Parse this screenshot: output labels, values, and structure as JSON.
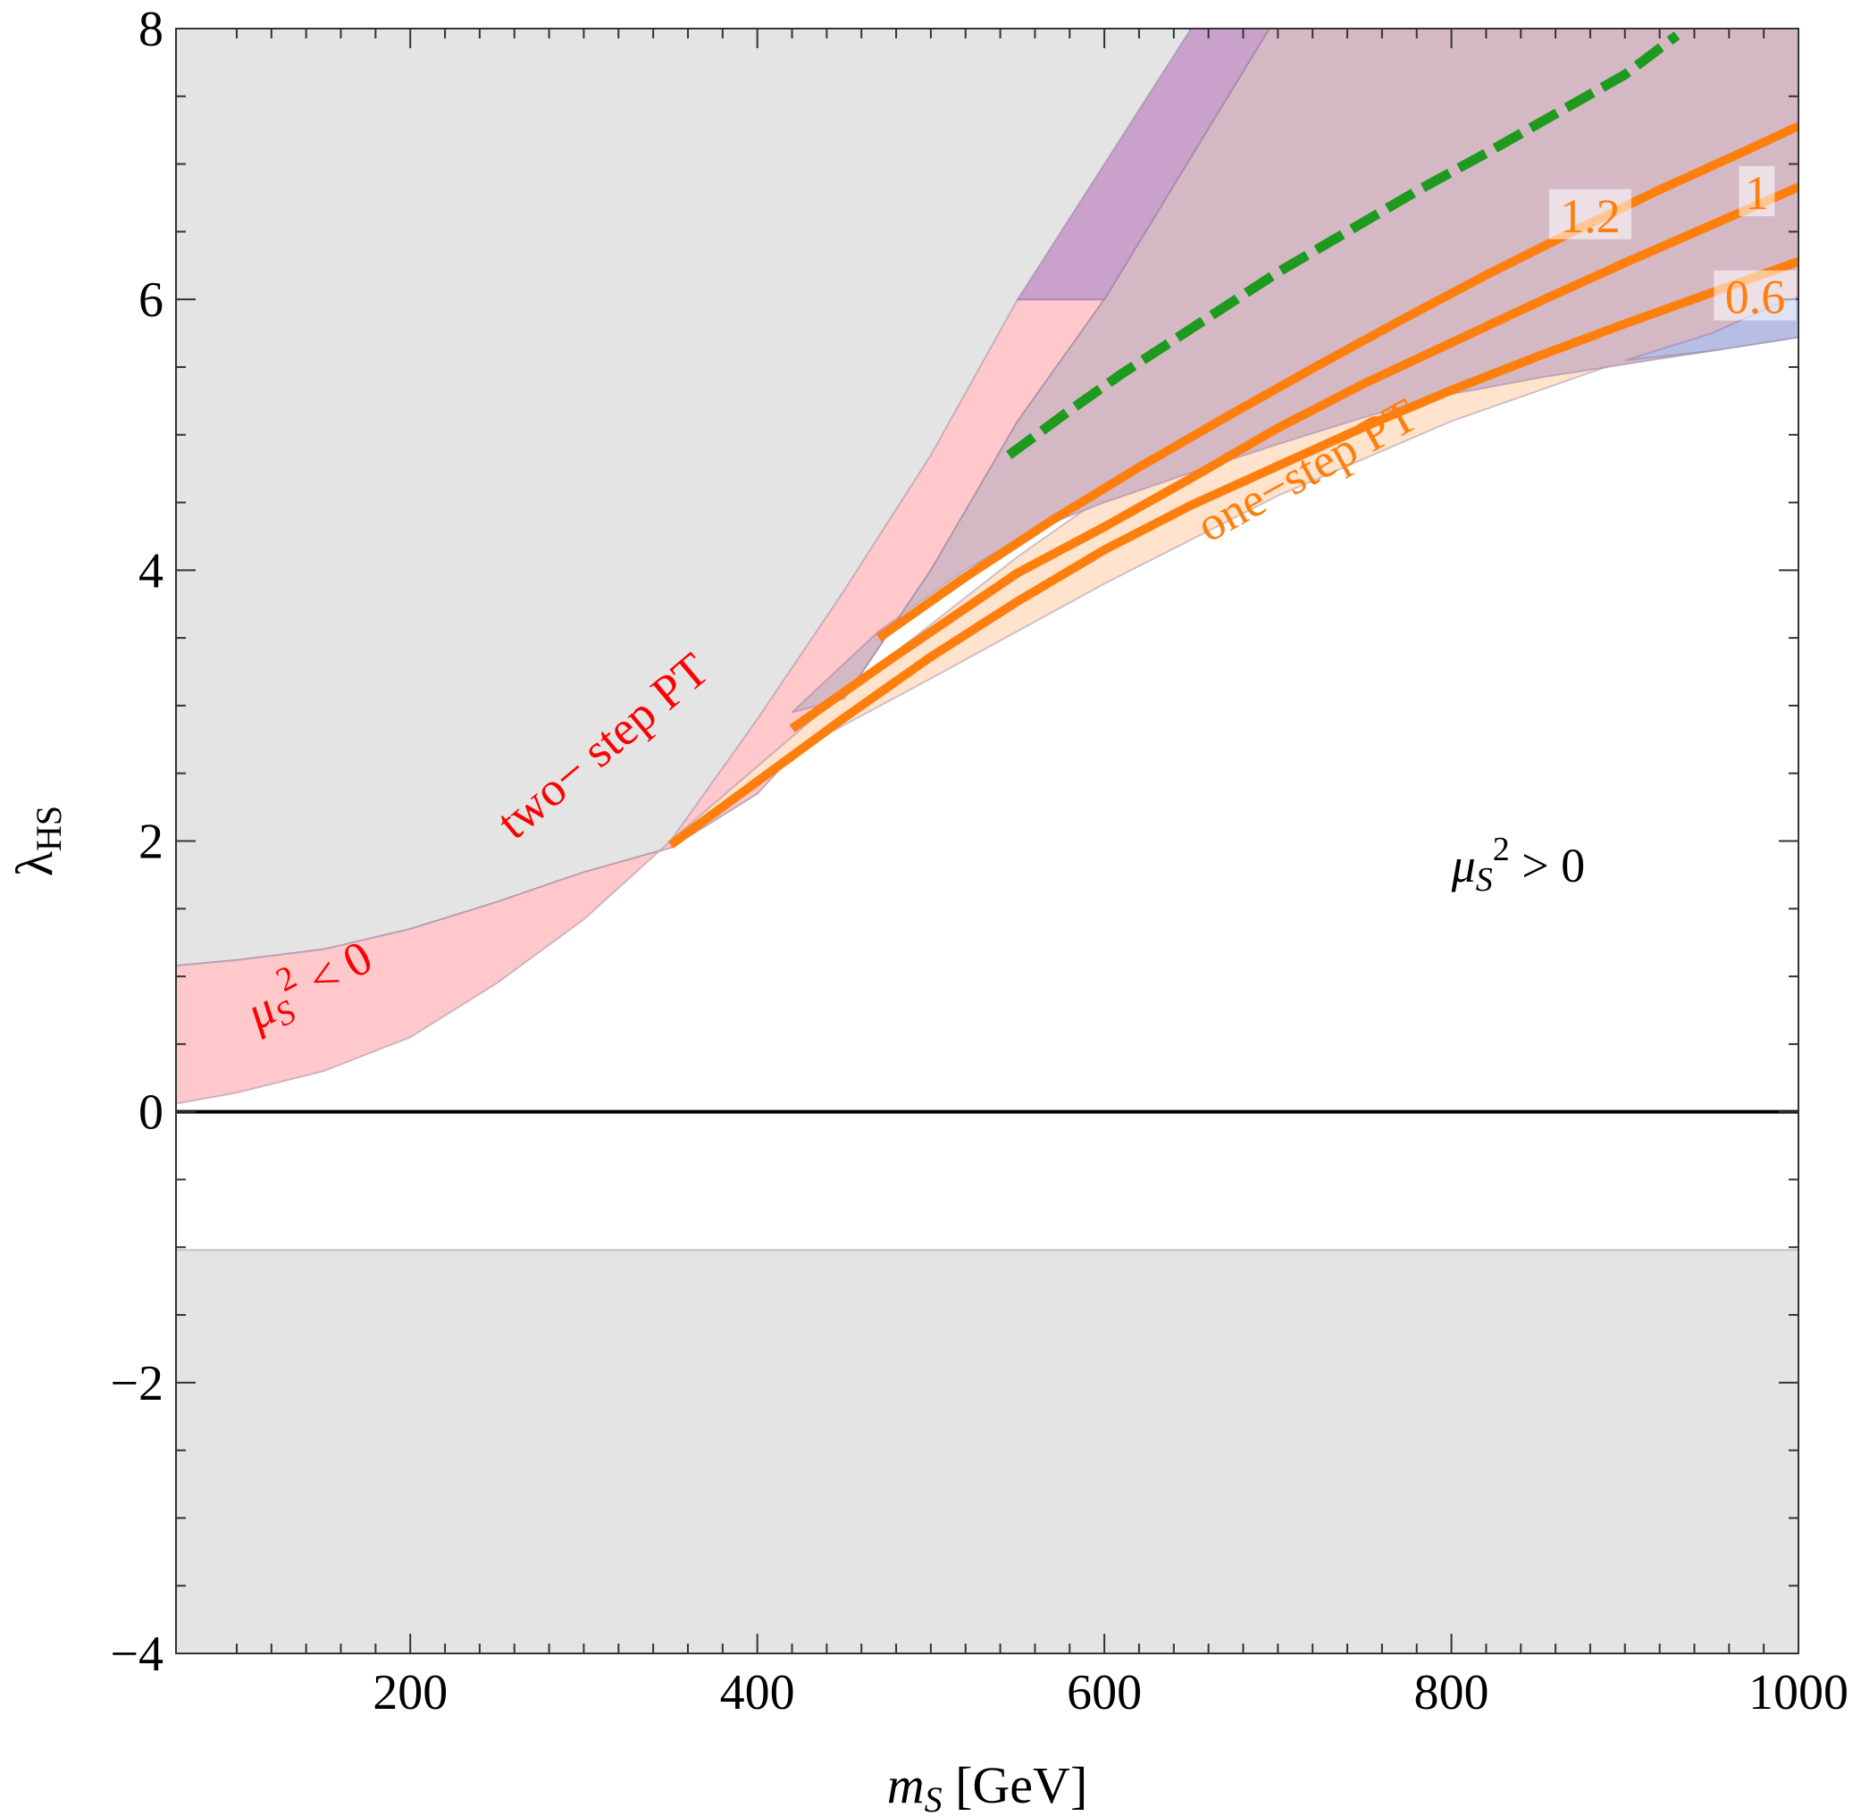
{
  "chart_data": {
    "type": "area",
    "xlabel": {
      "var": "m",
      "sub": "S",
      "unit": " [GeV]"
    },
    "ylabel": {
      "var": "λ",
      "sub": "HS"
    },
    "xlim": [
      65,
      1000
    ],
    "ylim": [
      -4,
      8
    ],
    "xticks": [
      200,
      400,
      600,
      800,
      1000
    ],
    "xtick_labels": [
      "200",
      "400",
      "600",
      "800",
      "1000"
    ],
    "yticks": [
      -4,
      -2,
      0,
      2,
      4,
      6,
      8
    ],
    "ytick_labels": [
      "−4",
      "−2",
      "0",
      "2",
      "4",
      "6",
      "8"
    ],
    "grid": false,
    "colors": {
      "excluded_gray": "#e4e4e4",
      "two_step_pink": "#ffc8cb",
      "one_step_peach": "#ffe3cc",
      "purple_region": "#c9a1cb",
      "mauve_overlap": "#d4b9c5",
      "blue_region": "#b8bde6",
      "orange_line": "#ff7f0e",
      "green_line": "#1e9a1e",
      "red_text": "#ff0000",
      "zero_line": "#000000"
    },
    "regions": [
      {
        "name": "excluded-upper",
        "color_key": "excluded_gray",
        "points": [
          [
            65,
            8
          ],
          [
            650,
            8
          ],
          [
            600,
            6
          ],
          [
            550,
            5.1
          ],
          [
            500,
            4.0
          ],
          [
            450,
            3.05
          ],
          [
            400,
            2.35
          ],
          [
            350,
            1.95
          ],
          [
            300,
            1.77
          ],
          [
            250,
            1.55
          ],
          [
            200,
            1.35
          ],
          [
            150,
            1.2
          ],
          [
            100,
            1.12
          ],
          [
            65,
            1.08
          ]
        ]
      },
      {
        "name": "excluded-lower",
        "color_key": "excluded_gray",
        "points": [
          [
            65,
            -1.02
          ],
          [
            1000,
            -1.02
          ],
          [
            1000,
            -4
          ],
          [
            65,
            -4
          ]
        ]
      },
      {
        "name": "two-step-band",
        "color_key": "two_step_pink",
        "points": [
          [
            65,
            1.08
          ],
          [
            100,
            1.12
          ],
          [
            150,
            1.2
          ],
          [
            200,
            1.35
          ],
          [
            250,
            1.55
          ],
          [
            300,
            1.77
          ],
          [
            350,
            1.95
          ],
          [
            400,
            2.35
          ],
          [
            450,
            3.05
          ],
          [
            500,
            4.0
          ],
          [
            550,
            5.1
          ],
          [
            600,
            6
          ],
          [
            550,
            6
          ],
          [
            500,
            4.85
          ],
          [
            450,
            3.85
          ],
          [
            400,
            2.9
          ],
          [
            350,
            2.0
          ],
          [
            300,
            1.42
          ],
          [
            250,
            0.95
          ],
          [
            200,
            0.55
          ],
          [
            150,
            0.3
          ],
          [
            100,
            0.14
          ],
          [
            65,
            0.06
          ]
        ]
      },
      {
        "name": "one-step-band",
        "color_key": "one_step_peach",
        "points": [
          [
            350,
            2.0
          ],
          [
            400,
            2.55
          ],
          [
            450,
            3.1
          ],
          [
            500,
            3.6
          ],
          [
            550,
            4.1
          ],
          [
            600,
            4.55
          ],
          [
            650,
            4.85
          ],
          [
            700,
            5.05
          ],
          [
            750,
            5.2
          ],
          [
            800,
            5.35
          ],
          [
            850,
            5.45
          ],
          [
            900,
            5.55
          ],
          [
            900,
            5.55
          ],
          [
            800,
            5.1
          ],
          [
            700,
            4.55
          ],
          [
            600,
            3.9
          ],
          [
            500,
            3.2
          ],
          [
            420,
            2.65
          ],
          [
            350,
            2.0
          ]
        ]
      },
      {
        "name": "mauve-region",
        "color_key": "mauve_overlap",
        "points": [
          [
            420,
            2.95
          ],
          [
            470,
            3.55
          ],
          [
            520,
            4.0
          ],
          [
            560,
            4.3
          ],
          [
            600,
            4.5
          ],
          [
            650,
            4.72
          ],
          [
            700,
            4.93
          ],
          [
            750,
            5.13
          ],
          [
            800,
            5.3
          ],
          [
            850,
            5.42
          ],
          [
            900,
            5.52
          ],
          [
            950,
            5.62
          ],
          [
            1000,
            5.72
          ],
          [
            1000,
            8
          ],
          [
            695,
            8
          ],
          [
            600,
            6
          ],
          [
            550,
            5.1
          ],
          [
            500,
            4.0
          ],
          [
            450,
            3.05
          ]
        ]
      },
      {
        "name": "purple-region",
        "color_key": "purple_region",
        "points": [
          [
            550,
            6
          ],
          [
            600,
            6
          ],
          [
            695,
            8
          ],
          [
            650,
            8
          ]
        ]
      },
      {
        "name": "blue-region",
        "color_key": "blue_region",
        "points": [
          [
            900,
            5.55
          ],
          [
            950,
            5.75
          ],
          [
            985,
            5.95
          ],
          [
            1000,
            6.02
          ],
          [
            1000,
            5.72
          ],
          [
            950,
            5.62
          ]
        ]
      }
    ],
    "series": [
      {
        "name": "1.2",
        "color_key": "orange_line",
        "style": "solid",
        "x": [
          470,
          520,
          570,
          620,
          670,
          720,
          770,
          820,
          870,
          920,
          970,
          1000
        ],
        "y": [
          3.5,
          3.95,
          4.37,
          4.76,
          5.13,
          5.49,
          5.84,
          6.18,
          6.5,
          6.81,
          7.1,
          7.28
        ]
      },
      {
        "name": "1",
        "color_key": "orange_line",
        "style": "solid",
        "x": [
          420,
          480,
          550,
          600,
          650,
          700,
          750,
          800,
          850,
          900,
          950,
          1000
        ],
        "y": [
          2.83,
          3.37,
          3.98,
          4.32,
          4.68,
          5.05,
          5.38,
          5.68,
          5.98,
          6.27,
          6.55,
          6.83
        ]
      },
      {
        "name": "0.6",
        "color_key": "orange_line",
        "style": "solid",
        "x": [
          350,
          400,
          450,
          500,
          550,
          600,
          650,
          700,
          750,
          800,
          850,
          900,
          950,
          1000
        ],
        "y": [
          1.97,
          2.44,
          2.91,
          3.36,
          3.77,
          4.15,
          4.48,
          4.77,
          5.06,
          5.33,
          5.58,
          5.82,
          6.05,
          6.28
        ]
      },
      {
        "name": "green-dashed",
        "color_key": "green_line",
        "style": "dashed",
        "x": [
          545,
          580,
          610,
          640,
          670,
          700,
          740,
          780,
          820,
          860,
          900,
          930
        ],
        "y": [
          4.85,
          5.18,
          5.45,
          5.7,
          5.95,
          6.2,
          6.5,
          6.8,
          7.08,
          7.37,
          7.66,
          7.95
        ]
      }
    ],
    "annotations": [
      {
        "name": "one-step-label",
        "text": "one−step PT",
        "color_key": "orange_line",
        "x": 660,
        "y": 4.2,
        "rotate": -29
      },
      {
        "name": "two-step-label",
        "text": "two− step  PT",
        "color_key": "red_text",
        "x": 260,
        "y": 2.0,
        "rotate": -40
      },
      {
        "name": "neg-mu-label",
        "base": "μ",
        "sub": "S",
        "sup": "2",
        "rest": "< 0",
        "color_key": "red_text",
        "x": 112,
        "y": 0.6,
        "rotate": -28
      },
      {
        "name": "pos-mu-label",
        "base": "μ",
        "sub": "S",
        "sup": "2",
        "rest": "> 0",
        "color_key": "zero_line",
        "x": 800,
        "y": 1.7,
        "rotate": 0
      }
    ],
    "line_labels": [
      {
        "series": "1.2",
        "text": "1.2",
        "x": 880,
        "y": 6.55
      },
      {
        "series": "1",
        "text": "1",
        "x": 976,
        "y": 6.72
      },
      {
        "series": "0.6",
        "text": "0.6",
        "x": 975,
        "y": 5.95
      }
    ]
  }
}
